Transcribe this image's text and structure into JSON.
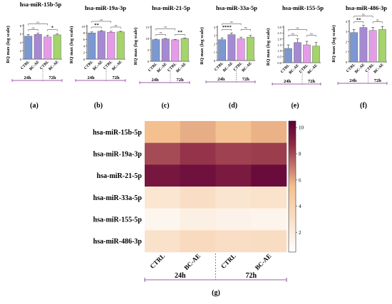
{
  "chart_data": [
    {
      "type": "bar",
      "panel_label": "(a)",
      "title": "hsa-miR-15b-5p",
      "ylabel": "RQ max (log scale)",
      "categories": [
        "CTRL",
        "BC-AE",
        "CTRL",
        "BC-AE"
      ],
      "values": [
        5.5,
        5.9,
        5.3,
        5.8
      ],
      "errors": [
        0.4,
        0.3,
        0.4,
        0.2
      ],
      "ylim": [
        0,
        8
      ],
      "yticks": [
        "0",
        "2",
        "4",
        "6",
        "8"
      ],
      "groups": [
        "24h",
        "72h"
      ],
      "sig_pairs": [
        [
          "ns",
          "CTRL 24h vs BC-AE 24h"
        ],
        [
          "*",
          "CTRL 72h vs BC-AE 72h"
        ],
        [
          "ns",
          "CTRL 24h vs CTRL 72h"
        ]
      ]
    },
    {
      "type": "bar",
      "panel_label": "(b)",
      "title": "hsa-miR-19a-3p",
      "ylabel": "RQ max (log scale)",
      "categories": [
        "CTRL",
        "BC-AE",
        "CTRL",
        "BC-AE"
      ],
      "values": [
        8.0,
        8.5,
        8.2,
        8.3
      ],
      "errors": [
        0.3,
        0.2,
        0.3,
        0.2
      ],
      "ylim": [
        0,
        10
      ],
      "yticks": [
        "0",
        "2",
        "4",
        "6",
        "8",
        "10"
      ],
      "groups": [
        "24h",
        "72h"
      ],
      "sig_pairs": [
        [
          "**",
          "CTRL 24h vs BC-AE 24h"
        ],
        [
          "ns",
          "CTRL 72h vs BC-AE 72h"
        ],
        [
          "ns",
          "CTRL 24h vs CTRL 72h"
        ]
      ]
    },
    {
      "type": "bar",
      "panel_label": "(c)",
      "title": "hsa-miR-21-5p",
      "ylabel": "RQ max (log scale)",
      "categories": [
        "CTRL",
        "BC-AE",
        "CTRL",
        "BC-AE"
      ],
      "values": [
        9.5,
        9.8,
        9.4,
        10.0
      ],
      "errors": [
        0.2,
        0.2,
        0.2,
        0.2
      ],
      "ylim": [
        0,
        15
      ],
      "yticks": [
        "0",
        "5",
        "10",
        "15"
      ],
      "groups": [
        "24h",
        "72h"
      ],
      "sig_pairs": [
        [
          "ns",
          "CTRL 24h vs BC-AE 24h"
        ],
        [
          "**",
          "CTRL 72h vs BC-AE 72h"
        ],
        [
          "ns",
          "CTRL 24h vs CTRL 72h"
        ]
      ]
    },
    {
      "type": "bar",
      "panel_label": "(d)",
      "title": "hsa-miR-33a-5p",
      "ylabel": "RQ max (log scale)",
      "categories": [
        "CTRL",
        "BC-AE",
        "CTRL",
        "BC-AE"
      ],
      "values": [
        2.5,
        3.1,
        2.6,
        2.8
      ],
      "errors": [
        0.2,
        0.2,
        0.2,
        0.2
      ],
      "ylim": [
        0,
        4
      ],
      "yticks": [
        "0",
        "1",
        "2",
        "3",
        "4"
      ],
      "groups": [
        "24h",
        "72h"
      ],
      "sig_pairs": [
        [
          "****",
          "CTRL 24h vs BC-AE 24h"
        ],
        [
          "ns",
          "CTRL 72h vs BC-AE 72h"
        ],
        [
          "ns",
          "CTRL 24h vs CTRL 72h"
        ]
      ]
    },
    {
      "type": "bar",
      "panel_label": "(e)",
      "title": "hsa-miR-155-5p",
      "ylabel": "RQ max (log scale)",
      "categories": [
        "CTRL",
        "BC-AE",
        "CTRL",
        "BC-AE"
      ],
      "values": [
        1.2,
        1.7,
        1.5,
        1.4
      ],
      "errors": [
        0.3,
        0.3,
        0.3,
        0.3
      ],
      "ylim": [
        0,
        3
      ],
      "yticks": [
        "0.0",
        "0.5",
        "1.0",
        "1.5",
        "2.0",
        "2.5",
        "3.0"
      ],
      "groups": [
        "24h",
        "72h"
      ],
      "sig_pairs": [
        [
          "ns",
          "CTRL 24h vs BC-AE 24h"
        ],
        [
          "ns",
          "CTRL 72h vs BC-AE 72h"
        ],
        [
          "ns",
          "CTRL 24h vs CTRL 72h"
        ]
      ]
    },
    {
      "type": "bar",
      "panel_label": "(f)",
      "title": "hsa-miR-486-3p",
      "ylabel": "RQ max (log scale)",
      "categories": [
        "CTRL",
        "BC-AE",
        "CTRL",
        "BC-AE"
      ],
      "values": [
        2.9,
        3.4,
        3.1,
        3.2
      ],
      "errors": [
        0.3,
        0.2,
        0.3,
        0.3
      ],
      "ylim": [
        0,
        4
      ],
      "yticks": [
        "0",
        "1",
        "2",
        "3",
        "4"
      ],
      "groups": [
        "24h",
        "72h"
      ],
      "sig_pairs": [
        [
          "**",
          "CTRL 24h vs BC-AE 24h"
        ],
        [
          "ns",
          "CTRL 72h vs BC-AE 72h"
        ],
        [
          "ns",
          "CTRL 24h vs CTRL 72h"
        ]
      ]
    },
    {
      "type": "heatmap",
      "panel_label": "(g)",
      "rows": [
        "hsa-miR-15b-5p",
        "hsa-miR-19a-3p",
        "hsa-miR-21-5p",
        "hsa-miR-33a-5p",
        "hsa-miR-155-5p",
        "hsa-miR-486-3p"
      ],
      "columns": [
        "CTRL",
        "BC-AE",
        "CTRL",
        "BC-AE"
      ],
      "groups": [
        "24h",
        "72h"
      ],
      "values": [
        [
          5.5,
          5.9,
          5.3,
          5.8
        ],
        [
          8.0,
          8.5,
          8.2,
          8.3
        ],
        [
          9.5,
          9.8,
          9.4,
          10.0
        ],
        [
          2.5,
          3.1,
          2.6,
          2.8
        ],
        [
          1.2,
          1.7,
          1.5,
          1.4
        ],
        [
          2.9,
          3.4,
          3.1,
          3.2
        ]
      ],
      "colorbar_ticks": [
        2,
        4,
        6,
        8,
        10
      ],
      "colorbar_range": [
        0.5,
        10.5
      ],
      "colorscale": [
        "#ffffff",
        "#f4c08f",
        "#8f2a45",
        "#5a0039"
      ]
    }
  ],
  "colors": {
    "bars": [
      "#7b98d3",
      "#a58ad2",
      "#e59ce6",
      "#a4d46a"
    ],
    "group_line": "#7b2a8c",
    "ns_text": "#444444"
  }
}
